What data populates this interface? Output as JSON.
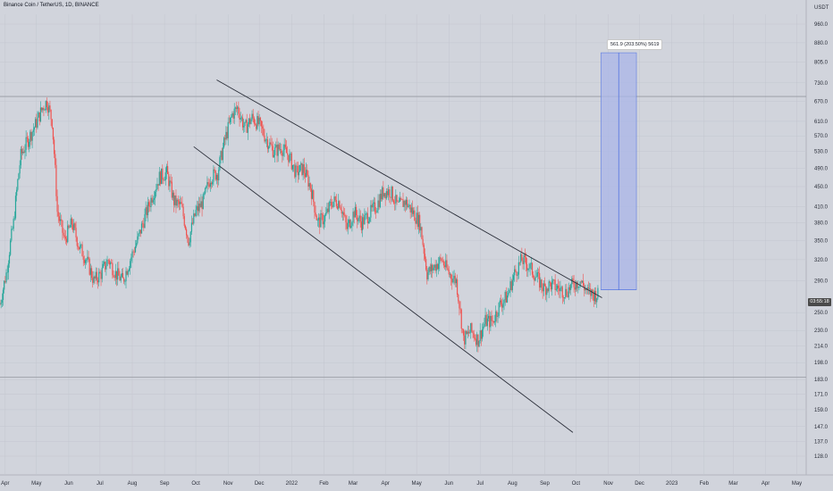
{
  "header": {
    "title": "Binance Coin / TetherUS, 1D, BINANCE"
  },
  "currency": "USDT",
  "badge": {
    "current_price": "03:55:18"
  },
  "measure": {
    "label": "561.9 (203.50%) 5619"
  },
  "colors": {
    "up": "#26a69a",
    "down": "#ef5350",
    "background": "#d1d4dc",
    "grid": "#c3c6cf",
    "measure_fill": "#aab6e8",
    "measure_line": "#4a6ee0"
  },
  "chart_data": {
    "type": "candlestick",
    "title": "Binance Coin / TetherUS, 1D, BINANCE",
    "y_unit": "USDT",
    "y_scale": "log",
    "ylim": [
      122,
      1040
    ],
    "y_ticks": [
      960.0,
      880.0,
      805.0,
      730.0,
      670.0,
      610.0,
      570.0,
      530.0,
      490.0,
      450.0,
      410.0,
      380.0,
      350.0,
      320.0,
      290.0,
      250.0,
      230.0,
      214.0,
      198.0,
      183.0,
      171.0,
      159.0,
      147.0,
      137.0,
      128.0
    ],
    "x_ticks": [
      "Apr",
      "May",
      "Jun",
      "Jul",
      "Aug",
      "Sep",
      "Oct",
      "Nov",
      "Dec",
      "2022",
      "Feb",
      "Mar",
      "Apr",
      "May",
      "Jun",
      "Jul",
      "Aug",
      "Sep",
      "Oct",
      "Nov",
      "Dec",
      "2023",
      "Feb",
      "Mar",
      "Apr",
      "May"
    ],
    "x_tick_dates": [
      "2021-04-01",
      "2021-05-01",
      "2021-06-01",
      "2021-07-01",
      "2021-08-01",
      "2021-09-01",
      "2021-10-01",
      "2021-11-01",
      "2021-12-01",
      "2022-01-01",
      "2022-02-01",
      "2022-03-01",
      "2022-04-01",
      "2022-05-01",
      "2022-06-01",
      "2022-07-01",
      "2022-08-01",
      "2022-09-01",
      "2022-10-01",
      "2022-11-01",
      "2022-12-01",
      "2023-01-01",
      "2023-02-01",
      "2023-03-01",
      "2023-04-01",
      "2023-05-01"
    ],
    "grid": true,
    "horizontal_levels": [
      685,
      185
    ],
    "trendlines": [
      {
        "from": [
          "2021-10-21",
          740
        ],
        "to": [
          "2022-10-26",
          268
        ]
      },
      {
        "from": [
          "2021-09-29",
          542
        ],
        "to": [
          "2022-09-28",
          143
        ]
      }
    ],
    "series": [
      {
        "values": [
          [
            "2021-03-27",
            260
          ],
          [
            "2021-04-02",
            300
          ],
          [
            "2021-04-09",
            380
          ],
          [
            "2021-04-16",
            520
          ],
          [
            "2021-04-23",
            560
          ],
          [
            "2021-04-30",
            600
          ],
          [
            "2021-05-07",
            650
          ],
          [
            "2021-05-11",
            670
          ],
          [
            "2021-05-16",
            610
          ],
          [
            "2021-05-21",
            400
          ],
          [
            "2021-05-28",
            350
          ],
          [
            "2021-06-04",
            380
          ],
          [
            "2021-06-11",
            340
          ],
          [
            "2021-06-18",
            320
          ],
          [
            "2021-06-25",
            290
          ],
          [
            "2021-07-02",
            300
          ],
          [
            "2021-07-09",
            320
          ],
          [
            "2021-07-16",
            300
          ],
          [
            "2021-07-23",
            290
          ],
          [
            "2021-07-30",
            320
          ],
          [
            "2021-08-06",
            350
          ],
          [
            "2021-08-13",
            390
          ],
          [
            "2021-08-20",
            430
          ],
          [
            "2021-08-27",
            470
          ],
          [
            "2021-09-03",
            480
          ],
          [
            "2021-09-10",
            420
          ],
          [
            "2021-09-17",
            410
          ],
          [
            "2021-09-24",
            350
          ],
          [
            "2021-10-01",
            400
          ],
          [
            "2021-10-08",
            420
          ],
          [
            "2021-10-15",
            470
          ],
          [
            "2021-10-22",
            480
          ],
          [
            "2021-10-29",
            560
          ],
          [
            "2021-11-05",
            630
          ],
          [
            "2021-11-10",
            650
          ],
          [
            "2021-11-17",
            590
          ],
          [
            "2021-11-24",
            620
          ],
          [
            "2021-12-01",
            600
          ],
          [
            "2021-12-08",
            560
          ],
          [
            "2021-12-15",
            530
          ],
          [
            "2021-12-22",
            540
          ],
          [
            "2021-12-29",
            520
          ],
          [
            "2022-01-05",
            480
          ],
          [
            "2022-01-12",
            490
          ],
          [
            "2022-01-19",
            450
          ],
          [
            "2022-01-26",
            380
          ],
          [
            "2022-02-02",
            390
          ],
          [
            "2022-02-09",
            420
          ],
          [
            "2022-02-16",
            420
          ],
          [
            "2022-02-23",
            370
          ],
          [
            "2022-03-02",
            400
          ],
          [
            "2022-03-09",
            380
          ],
          [
            "2022-03-16",
            395
          ],
          [
            "2022-03-23",
            410
          ],
          [
            "2022-03-30",
            440
          ],
          [
            "2022-04-06",
            440
          ],
          [
            "2022-04-13",
            410
          ],
          [
            "2022-04-20",
            420
          ],
          [
            "2022-04-27",
            400
          ],
          [
            "2022-05-04",
            380
          ],
          [
            "2022-05-11",
            300
          ],
          [
            "2022-05-18",
            310
          ],
          [
            "2022-05-25",
            320
          ],
          [
            "2022-06-01",
            300
          ],
          [
            "2022-06-08",
            290
          ],
          [
            "2022-06-15",
            220
          ],
          [
            "2022-06-22",
            230
          ],
          [
            "2022-06-29",
            220
          ],
          [
            "2022-07-06",
            240
          ],
          [
            "2022-07-13",
            240
          ],
          [
            "2022-07-20",
            260
          ],
          [
            "2022-07-27",
            270
          ],
          [
            "2022-08-03",
            300
          ],
          [
            "2022-08-10",
            320
          ],
          [
            "2022-08-17",
            310
          ],
          [
            "2022-08-24",
            295
          ],
          [
            "2022-08-31",
            280
          ],
          [
            "2022-09-07",
            285
          ],
          [
            "2022-09-14",
            280
          ],
          [
            "2022-09-21",
            275
          ],
          [
            "2022-09-28",
            285
          ],
          [
            "2022-10-05",
            290
          ],
          [
            "2022-10-12",
            275
          ],
          [
            "2022-10-19",
            272
          ],
          [
            "2022-10-22",
            272
          ]
        ]
      }
    ]
  }
}
